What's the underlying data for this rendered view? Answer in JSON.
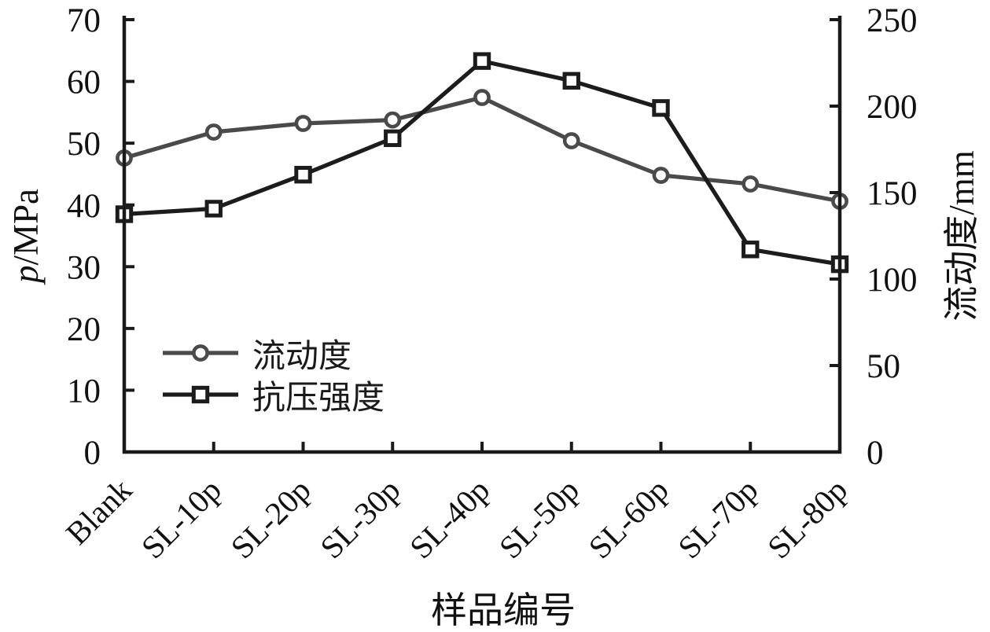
{
  "page": {
    "background": "#ffffff"
  },
  "chart_data": {
    "type": "line",
    "title": "",
    "categories": [
      "Blank",
      "SL-10p",
      "SL-20p",
      "SL-30p",
      "SL-40p",
      "SL-50p",
      "SL-60p",
      "SL-70p",
      "SL-80p"
    ],
    "x_axis": {
      "label": "样品编号"
    },
    "left_axis": {
      "label": "p/MPa",
      "label_parts": {
        "symbol": "p",
        "unit": "/MPa"
      },
      "min": 0,
      "max": 70,
      "ticks": [
        0,
        10,
        20,
        30,
        40,
        50,
        60,
        70
      ]
    },
    "right_axis": {
      "label": "流动度/mm",
      "min": 0,
      "max": 250,
      "ticks": [
        0,
        50,
        100,
        150,
        200,
        250
      ]
    },
    "series": [
      {
        "name": "流动度",
        "axis": "right",
        "marker": "circle",
        "color": "#4a4a4a",
        "values": [
          170,
          185,
          190,
          192,
          205,
          180,
          160,
          155,
          145
        ]
      },
      {
        "name": "抗压强度",
        "axis": "left",
        "marker": "square",
        "color": "#1c1c1c",
        "values": [
          38.5,
          39.4,
          44.9,
          50.8,
          63.3,
          60.1,
          55.7,
          32.8,
          30.4
        ]
      }
    ],
    "legend": {
      "position": "inside-bottom-left",
      "entries": [
        "流动度",
        "抗压强度"
      ]
    },
    "grid": false,
    "axis_color": "#1a1a1a",
    "tick_label_color": "#111111"
  }
}
